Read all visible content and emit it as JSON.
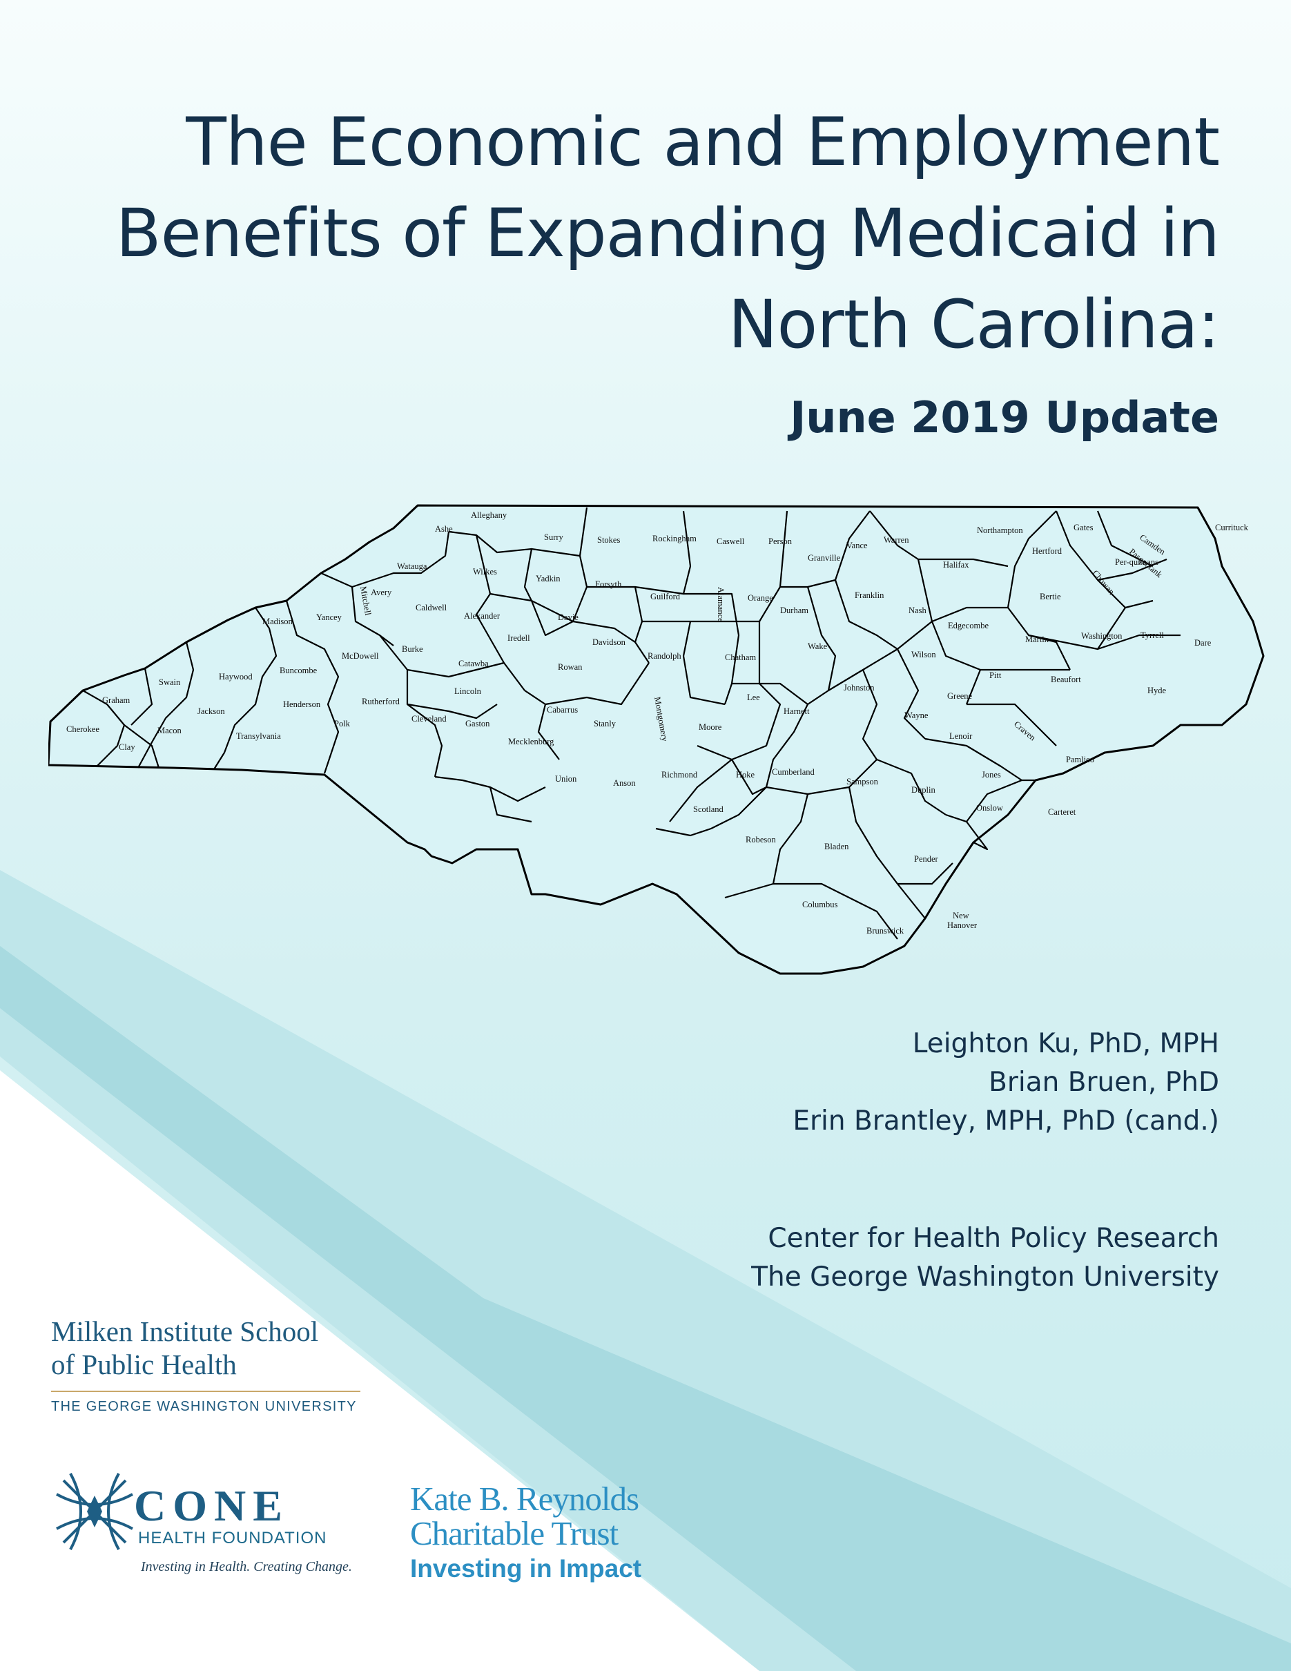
{
  "title": {
    "line1": "The Economic and Employment",
    "line2": "Benefits of Expanding Medicaid in",
    "line3": "North Carolina:"
  },
  "subtitle": "June 2019 Update",
  "map": {
    "counties": [
      "Ashe",
      "Alleghany",
      "Surry",
      "Stokes",
      "Rockingham",
      "Caswell",
      "Person",
      "Granville",
      "Vance",
      "Warren",
      "Northampton",
      "Gates",
      "Currituck",
      "Camden",
      "Pasquotank",
      "Per-quimans",
      "Chowan",
      "Hertford",
      "Watauga",
      "Wilkes",
      "Yadkin",
      "Forsyth",
      "Guilford",
      "Alamance",
      "Orange",
      "Durham",
      "Franklin",
      "Halifax",
      "Bertie",
      "Avery",
      "Mitchell",
      "Caldwell",
      "Alexander",
      "Davie",
      "Davidson",
      "Nash",
      "Edgecombe",
      "Martin",
      "Washington",
      "Tyrrell",
      "Dare",
      "Madison",
      "Yancey",
      "Burke",
      "Iredell",
      "Randolph",
      "Chatham",
      "Wake",
      "Wilson",
      "Pitt",
      "Beaufort",
      "Hyde",
      "McDowell",
      "Catawba",
      "Rowan",
      "Buncombe",
      "Haywood",
      "Swain",
      "Graham",
      "Lincoln",
      "Cabarrus",
      "Lee",
      "Johnston",
      "Greene",
      "Rutherford",
      "Henderson",
      "Jackson",
      "Cherokee",
      "Macon",
      "Clay",
      "Transylvania",
      "Polk",
      "Cleveland",
      "Gaston",
      "Mecklenburg",
      "Stanly",
      "Montgomery",
      "Moore",
      "Harnett",
      "Wayne",
      "Lenoir",
      "Craven",
      "Pamlico",
      "Union",
      "Anson",
      "Richmond",
      "Hoke",
      "Cumberland",
      "Sampson",
      "Duplin",
      "Jones",
      "Onslow",
      "Carteret",
      "Scotland",
      "Robeson",
      "Bladen",
      "Pender",
      "Columbus",
      "Brunswick",
      "New",
      "Hanover"
    ]
  },
  "authors": [
    "Leighton Ku, PhD, MPH",
    "Brian Bruen, PhD",
    "Erin Brantley, MPH, PhD (cand.)"
  ],
  "affiliation": [
    "Center for Health Policy Research",
    "The George Washington University"
  ],
  "logos": {
    "milken": {
      "line1": "Milken Institute School",
      "line2": "of Public Health",
      "line3": "THE GEORGE WASHINGTON UNIVERSITY"
    },
    "cone": {
      "word": "CONE",
      "sub": "HEALTH FOUNDATION",
      "tagline": "Investing in Health. Creating Change."
    },
    "kbr": {
      "line1": "Kate B. Reynolds",
      "line2": "Charitable Trust",
      "line3": "Investing in Impact"
    }
  },
  "colors": {
    "title": "#14304a",
    "band_light": "#c5e8ec",
    "band_dark": "#9dd3db",
    "kbr_blue": "#2c8fc3",
    "cone_blue": "#1e5e84"
  }
}
